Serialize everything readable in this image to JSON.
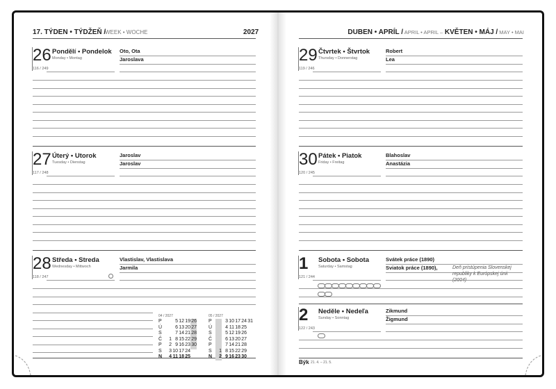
{
  "left_page": {
    "header": {
      "week": "17. TÝDEN • TÝDŽEŇ /",
      "week_alt": "WEEK • WOCHE",
      "year": "2027"
    },
    "days": [
      {
        "day": "26",
        "name": "Pondělí • Pondelok",
        "name_alt": "Monday • Montag",
        "count": "116 / 249",
        "names": [
          "Oto, Ota",
          "Jaroslava"
        ]
      },
      {
        "day": "27",
        "name": "Úterý • Utorok",
        "name_alt": "Tuesday • Dienstag",
        "count": "117 / 248",
        "names": [
          "Jaroslav",
          "Jaroslav"
        ]
      },
      {
        "day": "28",
        "name": "Středa • Streda",
        "name_alt": "Wednesday • Mittwoch",
        "count": "118 / 247",
        "names": [
          "Vlastislav, Vlastislava",
          "Jarmila"
        ]
      }
    ],
    "calendars": [
      {
        "label": "04 / 2027",
        "rows": [
          {
            "day": "P",
            "dates": [
              5,
              12,
              19,
              26
            ]
          },
          {
            "day": "Ú",
            "dates": [
              6,
              13,
              20,
              27
            ]
          },
          {
            "day": "S",
            "dates": [
              7,
              14,
              21,
              28
            ]
          },
          {
            "day": "Č",
            "dates": [
              1,
              8,
              15,
              22,
              29
            ]
          },
          {
            "day": "P",
            "dates": [
              2,
              9,
              16,
              23,
              30
            ]
          },
          {
            "day": "S",
            "dates": [
              3,
              10,
              17,
              24
            ]
          },
          {
            "day": "N",
            "dates": [
              4,
              11,
              18,
              25
            ]
          }
        ]
      },
      {
        "label": "05 / 2027",
        "rows": [
          {
            "day": "P",
            "dates": [
              3,
              10,
              17,
              24,
              31
            ]
          },
          {
            "day": "Ú",
            "dates": [
              4,
              11,
              18,
              25
            ]
          },
          {
            "day": "S",
            "dates": [
              5,
              12,
              19,
              26
            ]
          },
          {
            "day": "Č",
            "dates": [
              6,
              13,
              20,
              27
            ]
          },
          {
            "day": "P",
            "dates": [
              7,
              14,
              21,
              28
            ]
          },
          {
            "day": "S",
            "dates": [
              1,
              8,
              15,
              22,
              29
            ]
          },
          {
            "day": "N",
            "dates": [
              2,
              9,
              16,
              23,
              30
            ]
          }
        ]
      }
    ]
  },
  "right_page": {
    "header": {
      "month1": "DUBEN • APRÍL /",
      "month1_alt": "APRIL • APRIL –",
      "month2": "KVĚTEN • MÁJ /",
      "month2_alt": "MAY • MAI"
    },
    "days": [
      {
        "day": "29",
        "name": "Čtvrtek • Štvrtok",
        "name_alt": "Thursday • Donnerstag",
        "count": "119 / 246",
        "names": [
          "Robert",
          "Lea"
        ]
      },
      {
        "day": "30",
        "name": "Pátek • Piatok",
        "name_alt": "Friday • Freitag",
        "count": "120 / 245",
        "names": [
          "Blahoslav",
          "Anastázia"
        ]
      },
      {
        "day": "1",
        "name": "Sobota • Sobota",
        "name_alt": "Saturday • Samstag",
        "count": "121 / 244",
        "names": [
          "Svátek práce (1890)",
          "Sviatok práce (1890),"
        ],
        "note": "Deň pristúpenia Slovenskej republiky k Európskej únii (2004)"
      },
      {
        "day": "2",
        "name": "Neděle • Nedeľa",
        "name_alt": "Sunday • Sonntag",
        "count": "122 / 243",
        "names": [
          "Zikmund",
          "Žigmund"
        ]
      }
    ],
    "footer": {
      "sign": "Býk",
      "dates": "21. 4. – 21. 5."
    }
  }
}
